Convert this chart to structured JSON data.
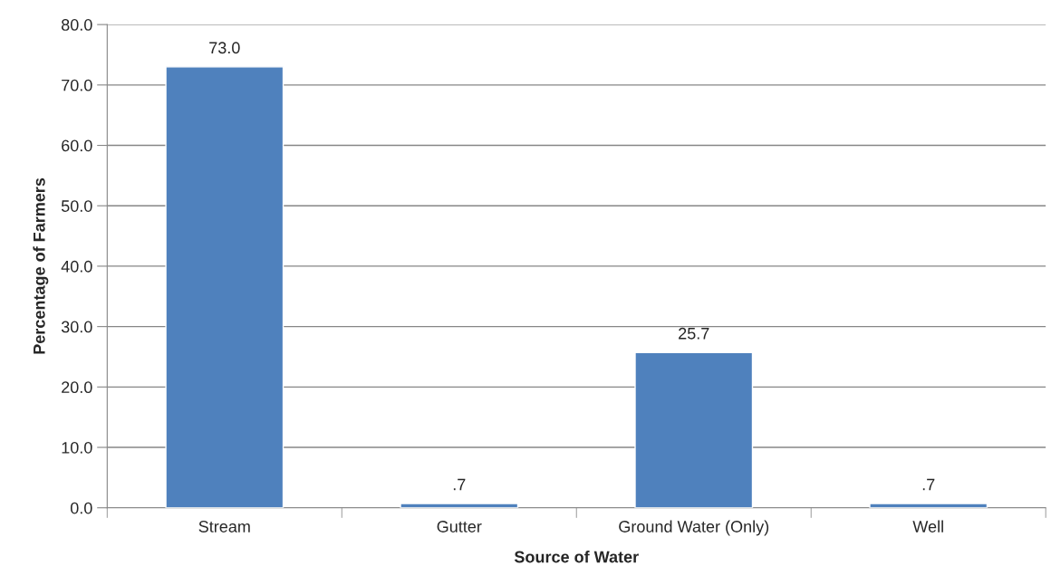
{
  "chart_data": {
    "type": "bar",
    "xlabel": "Source of Water",
    "ylabel": "Percentage of Farmers",
    "categories": [
      "Stream",
      "Gutter",
      "Ground Water (Only)",
      "Well"
    ],
    "values": [
      73.0,
      0.7,
      25.7,
      0.7
    ],
    "value_labels": [
      "73.0",
      ".7",
      "25.7",
      ".7"
    ],
    "color": "#4f81bd",
    "ylim": [
      0,
      80
    ],
    "yticks": [
      {
        "value": 0,
        "label": "0.0"
      },
      {
        "value": 10,
        "label": "10.0"
      },
      {
        "value": 20,
        "label": "20.0"
      },
      {
        "value": 30,
        "label": "30.0"
      },
      {
        "value": 40,
        "label": "40.0"
      },
      {
        "value": 50,
        "label": "50.0"
      },
      {
        "value": 60,
        "label": "60.0"
      },
      {
        "value": 70,
        "label": "70.0"
      },
      {
        "value": 80,
        "label": "80.0"
      }
    ],
    "grid": "y",
    "legend": false
  }
}
